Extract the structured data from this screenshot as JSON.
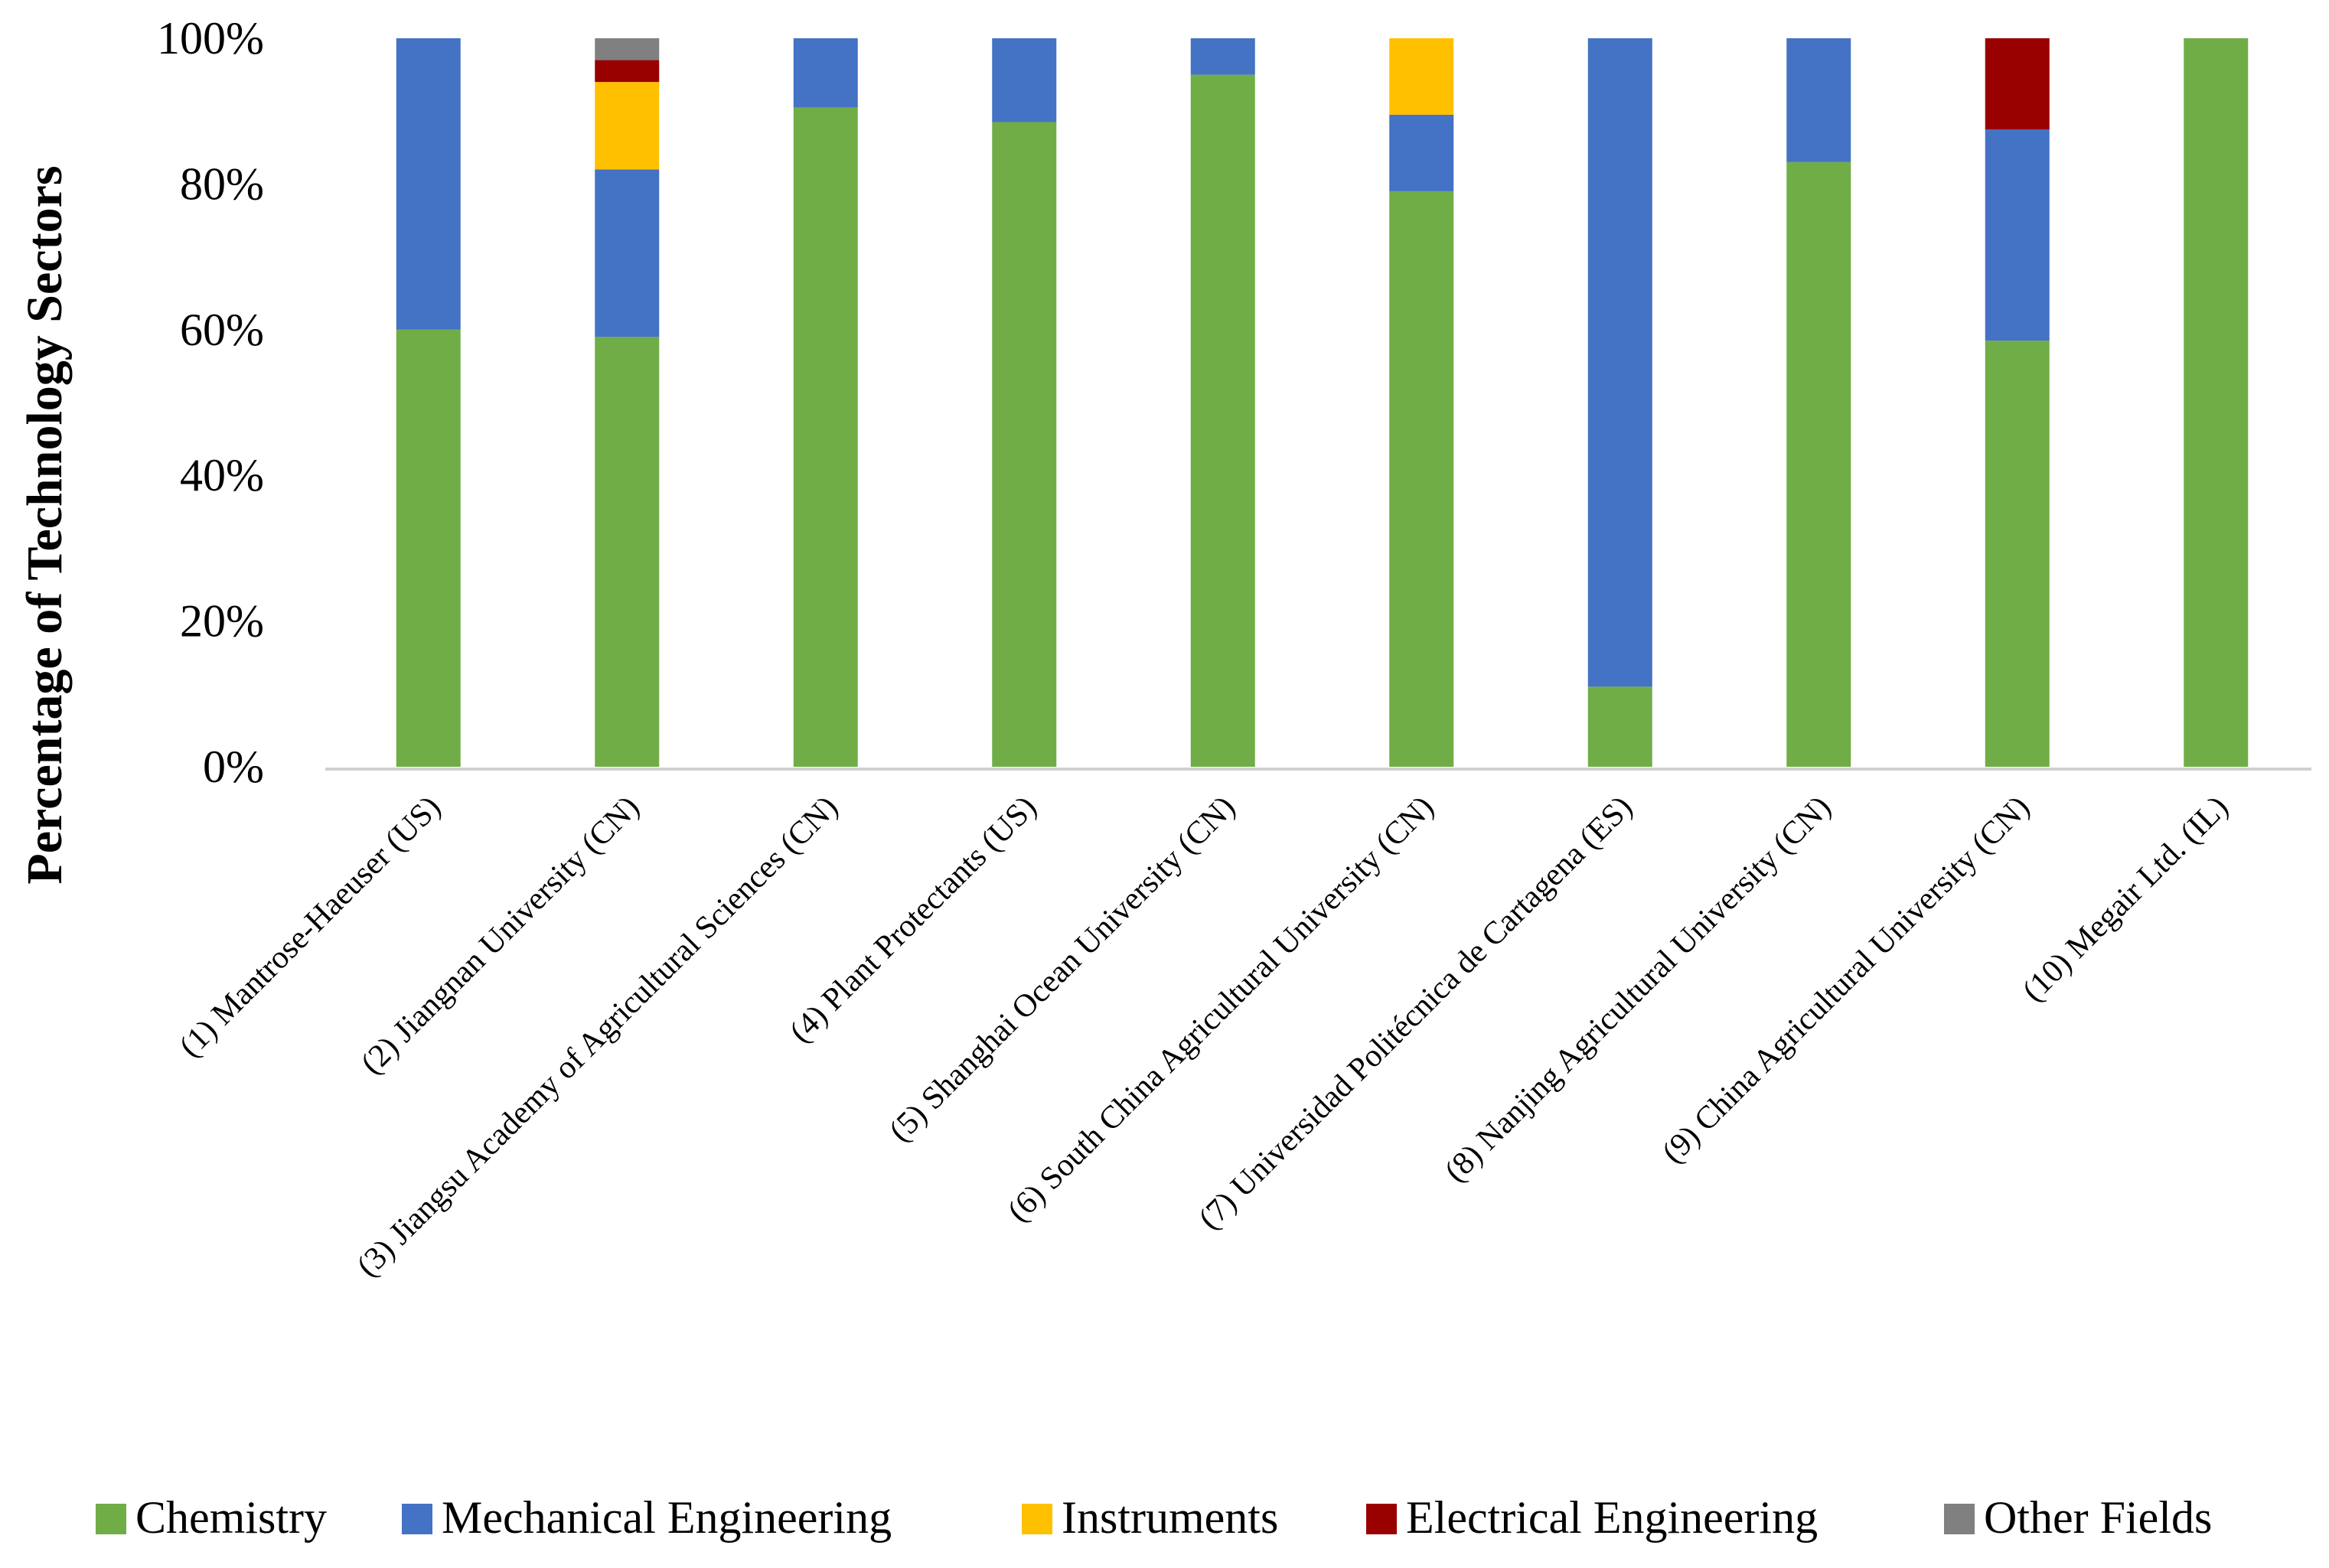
{
  "chart_data": {
    "type": "bar",
    "stacked": true,
    "percent": true,
    "title": "",
    "xlabel": "",
    "ylabel": "Percentage of Technology Sectors",
    "ylim": [
      0,
      100
    ],
    "yticks": [
      "0%",
      "20%",
      "40%",
      "60%",
      "80%",
      "100%"
    ],
    "yticks_values": [
      0,
      20,
      40,
      60,
      80,
      100
    ],
    "grid": false,
    "legend_position": "bottom",
    "categories": [
      "(1) Mantrose-Haeuser (US)",
      "(2) Jiangnan University (CN)",
      "(3) Jiangsu Academy of Agricultural Sciences (CN)",
      "(4) Plant Protectants (US)",
      "(5) Shanghai Ocean University (CN)",
      "(6) South China Agricultural University (CN)",
      "(7) Universidad Politécnica de Cartagena (ES)",
      "(8) Nanjing Agricultural University (CN)",
      "(9) China Agricultural University (CN)",
      "(10) Megair Ltd. (IL)"
    ],
    "series": [
      {
        "name": "Chemistry",
        "color": "#70AD47",
        "values": [
          60,
          59,
          90.5,
          88.5,
          95,
          79,
          11,
          83,
          58.5,
          100
        ]
      },
      {
        "name": "Mechanical Engineering",
        "color": "#4472C4",
        "values": [
          40,
          23,
          9.5,
          11.5,
          5,
          10.5,
          89,
          17,
          29,
          0
        ]
      },
      {
        "name": "Instruments",
        "color": "#FFC000",
        "values": [
          0,
          12,
          0,
          0,
          0,
          10.5,
          0,
          0,
          0,
          0
        ]
      },
      {
        "name": "Electrical Engineering",
        "color": "#990000",
        "values": [
          0,
          3,
          0,
          0,
          0,
          0,
          0,
          0,
          12.5,
          0
        ]
      },
      {
        "name": "Other Fields",
        "color": "#808080",
        "values": [
          0,
          3,
          0,
          0,
          0,
          0,
          0,
          0,
          0,
          0
        ]
      }
    ]
  }
}
